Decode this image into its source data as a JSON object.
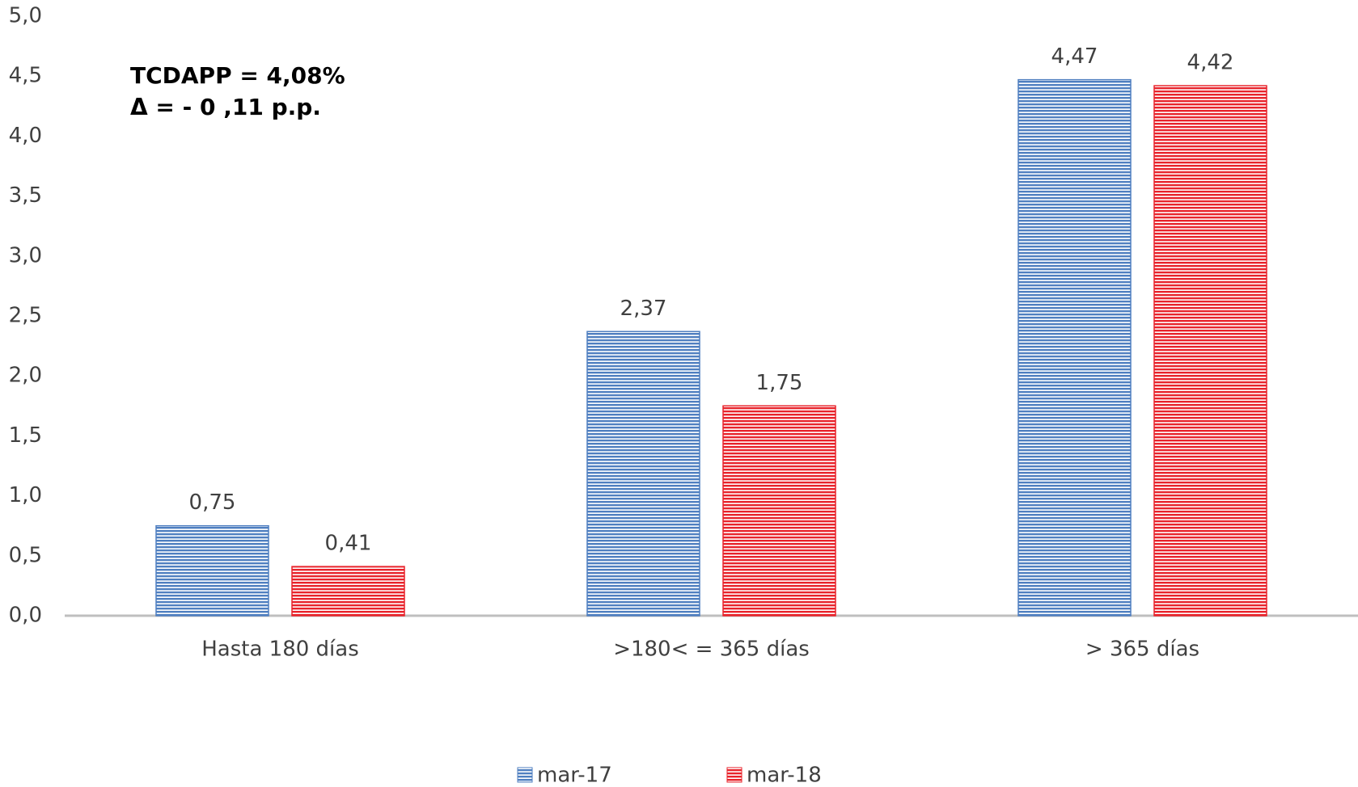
{
  "chart_data": {
    "type": "bar",
    "annotations": [
      "TCDAPP = 4,08%",
      "Δ  = - 0 ,11 p.p."
    ],
    "categories": [
      "Hasta 180 días",
      ">180< = 365 días",
      "> 365 días"
    ],
    "series": [
      {
        "name": "mar-17",
        "color": "#4f7fc0",
        "values": [
          0.75,
          2.37,
          4.47
        ],
        "value_labels": [
          "0,75",
          "2,37",
          "4,47"
        ]
      },
      {
        "name": "mar-18",
        "color": "#e8232b",
        "values": [
          0.41,
          1.75,
          4.42
        ],
        "value_labels": [
          "0,41",
          "1,75",
          "4,42"
        ]
      }
    ],
    "ylim": [
      0,
      5
    ],
    "yticks": [
      {
        "value": 0,
        "label": "0,0"
      },
      {
        "value": 0.5,
        "label": "0,5"
      },
      {
        "value": 1,
        "label": "1,0"
      },
      {
        "value": 1.5,
        "label": "1,5"
      },
      {
        "value": 2,
        "label": "2,0"
      },
      {
        "value": 2.5,
        "label": "2,5"
      },
      {
        "value": 3,
        "label": "3,0"
      },
      {
        "value": 3.5,
        "label": "3,5"
      },
      {
        "value": 4,
        "label": "4,0"
      },
      {
        "value": 4.5,
        "label": "4,5"
      },
      {
        "value": 5,
        "label": "5,0"
      }
    ],
    "grid": false,
    "legend": "bottom"
  }
}
